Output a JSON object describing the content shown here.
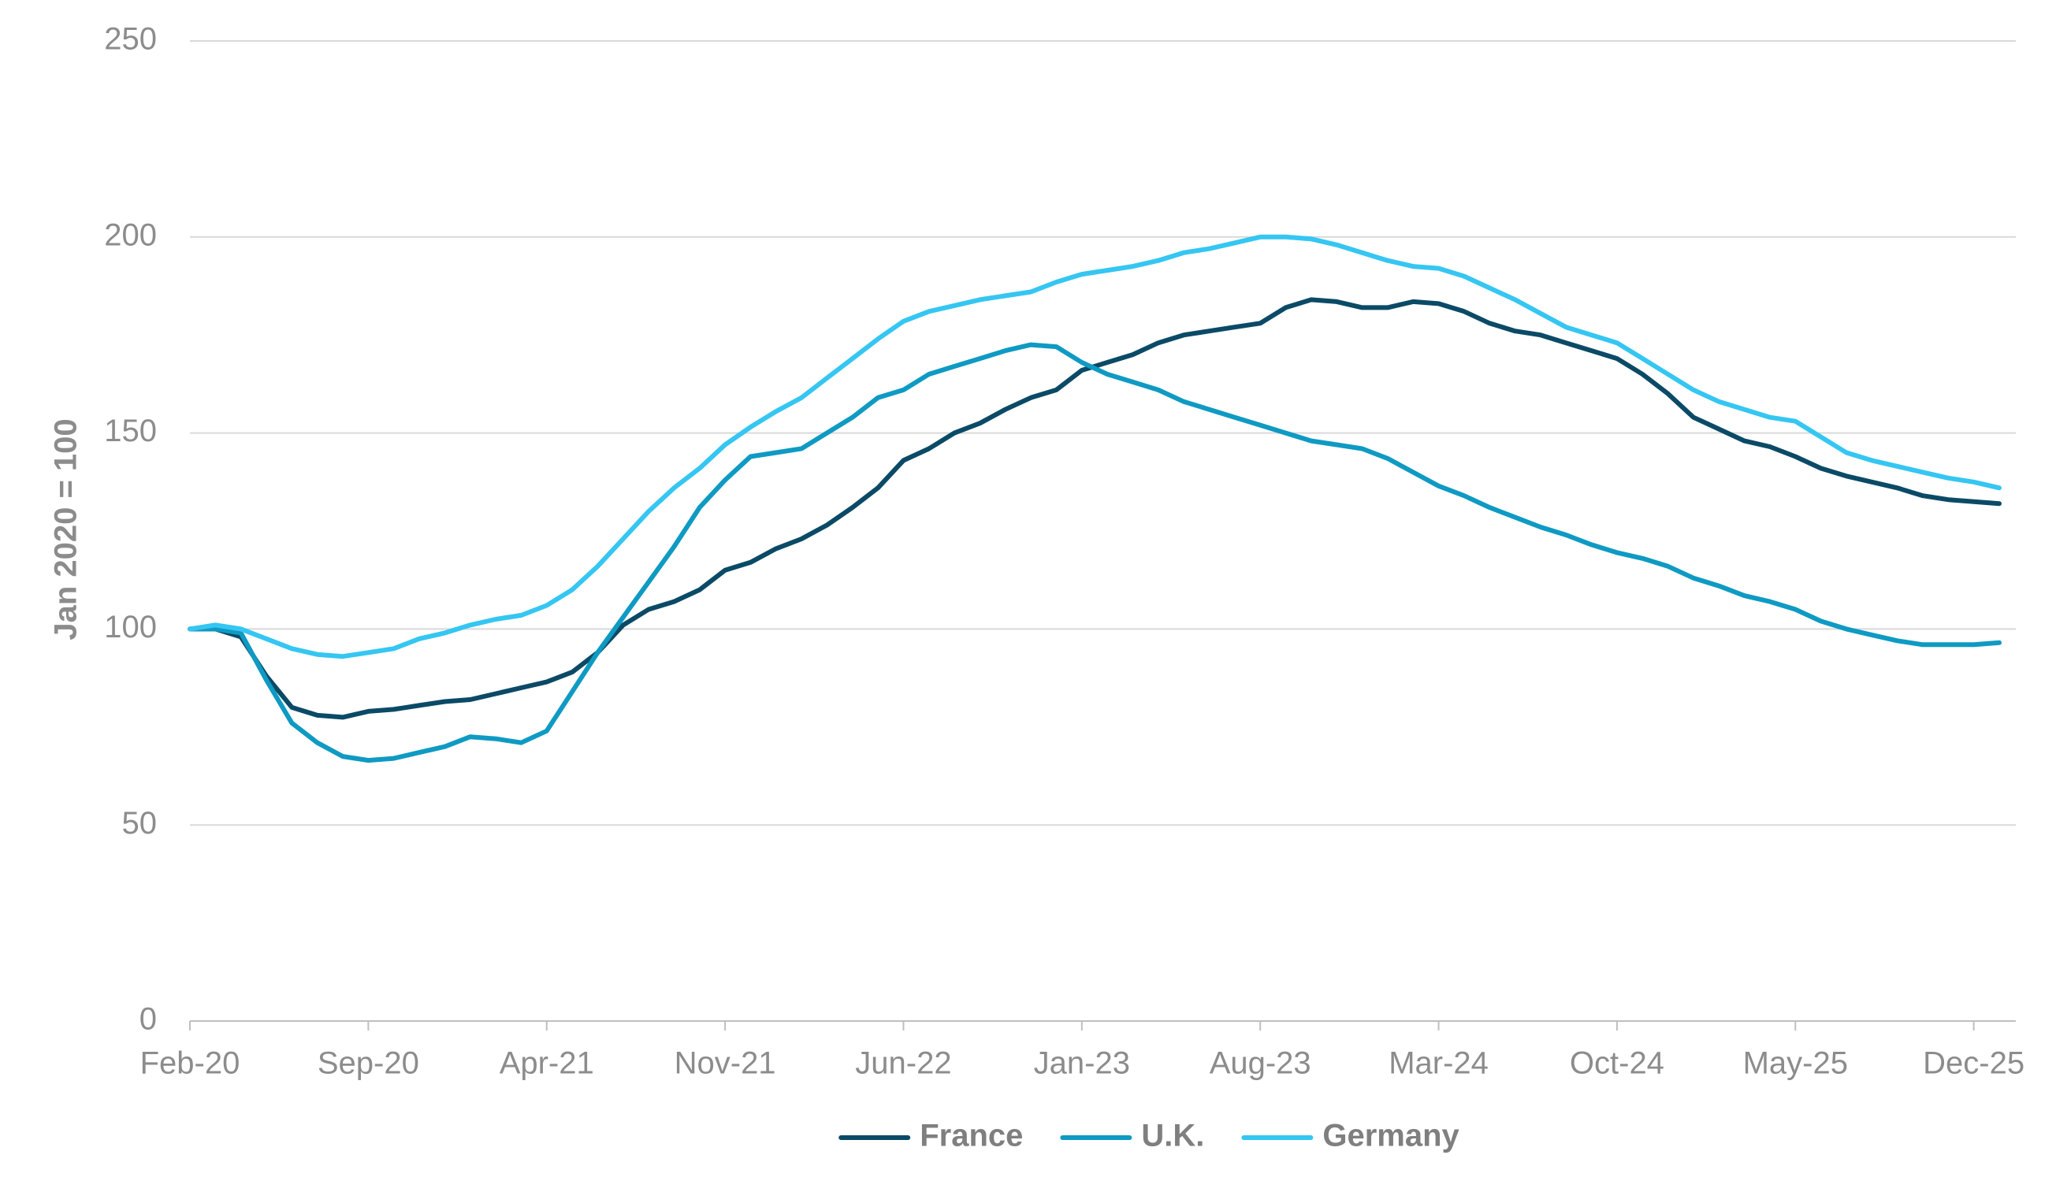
{
  "chart_data": {
    "type": "line",
    "y_label": "Jan 2020 = 100",
    "categories": [
      "Feb-20",
      null,
      null,
      null,
      null,
      null,
      null,
      "Sep-20",
      null,
      null,
      null,
      null,
      null,
      null,
      "Apr-21",
      null,
      null,
      null,
      null,
      null,
      null,
      "Nov-21",
      null,
      null,
      null,
      null,
      null,
      null,
      "Jun-22",
      null,
      null,
      null,
      null,
      null,
      null,
      "Jan-23",
      null,
      null,
      null,
      null,
      null,
      null,
      "Aug-23",
      null,
      null,
      null,
      null,
      null,
      null,
      "Mar-24",
      null,
      null,
      null,
      null,
      null,
      null,
      "Oct-24",
      null,
      null,
      null,
      null,
      null,
      null,
      "May-25",
      null,
      null,
      null,
      null,
      null,
      null,
      "Dec-25",
      null
    ],
    "series": [
      {
        "name": "France",
        "color": "#0a4a66",
        "values": [
          100,
          100,
          98,
          88,
          80,
          78,
          77.5,
          79,
          79.5,
          80.5,
          81.5,
          82,
          83.5,
          85,
          86.5,
          89,
          94,
          101,
          105,
          107,
          110,
          115,
          117,
          120.5,
          123,
          126.5,
          131,
          136,
          143,
          146,
          150,
          152.5,
          156,
          159,
          161,
          166,
          168,
          170,
          173,
          175,
          176,
          177,
          178,
          182,
          184,
          183.5,
          182,
          182,
          183.5,
          183,
          181,
          178,
          176,
          175,
          173,
          171,
          169,
          165,
          160,
          154,
          151,
          148,
          146.5,
          144,
          141,
          139,
          137.5,
          136,
          134,
          133,
          132.5,
          132
        ]
      },
      {
        "name": "U.K.",
        "color": "#0e9ac3",
        "values": [
          100,
          100,
          99,
          87,
          76,
          71,
          67.5,
          66.5,
          67,
          68.5,
          70,
          72.5,
          72,
          71,
          74,
          84,
          94,
          103,
          112,
          121,
          131,
          138,
          144,
          145,
          146,
          150,
          154,
          159,
          161,
          165,
          167,
          169,
          171,
          172.5,
          172,
          168,
          165,
          163,
          161,
          158,
          156,
          154,
          152,
          150,
          148,
          147,
          146,
          143.5,
          140,
          136.5,
          134,
          131,
          128.5,
          126,
          124,
          121.5,
          119.5,
          118,
          116,
          113,
          111,
          108.5,
          107,
          105,
          102,
          100,
          98.5,
          97,
          96,
          96,
          96,
          96.5
        ]
      },
      {
        "name": "Germany",
        "color": "#35c6f2",
        "values": [
          100,
          101,
          100,
          97.5,
          95,
          93.5,
          93,
          94,
          95,
          97.5,
          99,
          101,
          102.5,
          103.5,
          106,
          110,
          116,
          123,
          130,
          136,
          141,
          147,
          151.5,
          155.5,
          159,
          164,
          169,
          174,
          178.5,
          181,
          182.5,
          184,
          185,
          186,
          188.5,
          190.5,
          191.5,
          192.5,
          194,
          196,
          197,
          198.5,
          200,
          200,
          199.5,
          198,
          196,
          194,
          192.5,
          192,
          190,
          187,
          184,
          180.5,
          177,
          175,
          173,
          169,
          165,
          161,
          158,
          156,
          154,
          153,
          149,
          145,
          143,
          141.5,
          140,
          138.5,
          137.5,
          136
        ]
      }
    ],
    "ylim": [
      0,
      250
    ],
    "yticks": [
      0,
      50,
      100,
      150,
      200,
      250
    ],
    "grid": true,
    "legend": "bottom"
  }
}
